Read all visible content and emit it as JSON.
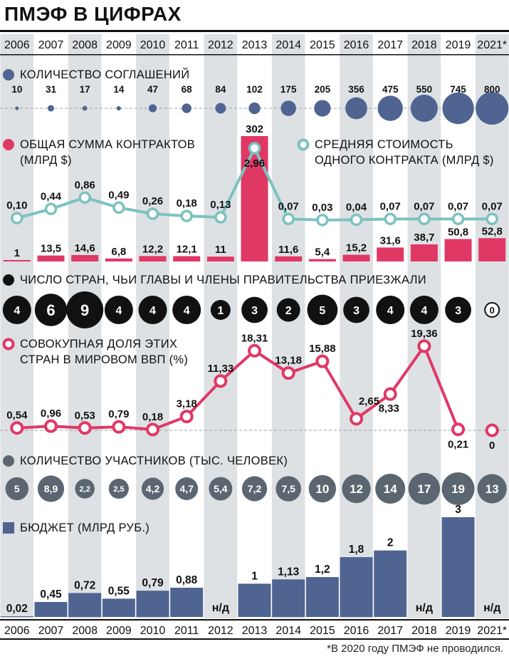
{
  "title": "ПМЭФ В ЦИФРАХ",
  "footnote": "*В 2020 году ПМЭФ не проводился.",
  "years": [
    "2006",
    "2007",
    "2008",
    "2009",
    "2010",
    "2011",
    "2012",
    "2013",
    "2014",
    "2015",
    "2016",
    "2017",
    "2018",
    "2019",
    "2021*"
  ],
  "colors": {
    "blue": "#4f6491",
    "pink": "#e03865",
    "teal": "#7cc2bf",
    "dark": "#111111",
    "gray": "#5b6670",
    "band": "#dde1e4",
    "dashed": "#9aa0a8"
  },
  "chart_data": [
    {
      "type": "scatter",
      "title": "КОЛИЧЕСТВО СОГЛАШЕНИЙ",
      "values": [
        10,
        31,
        17,
        14,
        47,
        68,
        84,
        102,
        175,
        205,
        356,
        475,
        550,
        745,
        800
      ],
      "labels": [
        "10",
        "31",
        "17",
        "14",
        "47",
        "68",
        "84",
        "102",
        "175",
        "205",
        "356",
        "475",
        "550",
        "745",
        "800"
      ]
    },
    {
      "type": "bar",
      "title": "ОБЩАЯ СУММА КОНТРАКТОВ (МЛРД $)",
      "values": [
        1,
        13.5,
        14.6,
        6.8,
        12.2,
        12.1,
        11,
        302,
        11.6,
        5.4,
        15.2,
        31.6,
        38.7,
        50.8,
        52.8
      ],
      "labels": [
        "1",
        "13,5",
        "14,6",
        "6,8",
        "12,2",
        "12,1",
        "11",
        "302",
        "11,6",
        "5,4",
        "15,2",
        "31,6",
        "38,7",
        "50,8",
        "52,8"
      ]
    },
    {
      "type": "line",
      "title": "СРЕДНЯЯ СТОИМОСТЬ ОДНОГО КОНТРАКТА (МЛРД $)",
      "title_lines": [
        "СРЕДНЯЯ СТОИМОСТЬ",
        "ОДНОГО КОНТРАКТА (МЛРД $)"
      ],
      "values": [
        0.1,
        0.44,
        0.86,
        0.49,
        0.26,
        0.18,
        0.13,
        2.96,
        0.07,
        0.03,
        0.04,
        0.07,
        0.07,
        0.07,
        0.07
      ],
      "labels": [
        "0,10",
        "0,44",
        "0,86",
        "0,49",
        "0,26",
        "0,18",
        "0,13",
        "2,96",
        "0,07",
        "0,03",
        "0,04",
        "0,07",
        "0,07",
        "0,07",
        "0,07"
      ]
    },
    {
      "type": "scatter",
      "title": "ЧИСЛО СТРАН, ЧЬИ ГЛАВЫ И ЧЛЕНЫ ПРАВИТЕЛЬСТВА ПРИЕЗЖАЛИ",
      "values": [
        4,
        6,
        9,
        4,
        4,
        4,
        1,
        3,
        2,
        5,
        3,
        4,
        4,
        3,
        0
      ],
      "labels": [
        "4",
        "6",
        "9",
        "4",
        "4",
        "4",
        "1",
        "3",
        "2",
        "5",
        "3",
        "4",
        "4",
        "3",
        "0"
      ]
    },
    {
      "type": "line",
      "title": "СОВОКУПНАЯ ДОЛЯ ЭТИХ СТРАН В МИРОВОМ ВВП (%)",
      "title_lines": [
        "СОВОКУПНАЯ ДОЛЯ ЭТИХ",
        "СТРАН В МИРОВОМ ВВП (%)"
      ],
      "values": [
        0.54,
        0.96,
        0.53,
        0.79,
        0.18,
        3.18,
        11.33,
        18.31,
        13.18,
        15.88,
        2.65,
        8.33,
        19.36,
        0.21,
        0
      ],
      "labels": [
        "0,54",
        "0,96",
        "0,53",
        "0,79",
        "0,18",
        "3,18",
        "11,33",
        "18,31",
        "13,18",
        "15,88",
        "2,65",
        "8,33",
        "19,36",
        "0,21",
        "0"
      ]
    },
    {
      "type": "scatter",
      "title": "КОЛИЧЕСТВО УЧАСТНИКОВ (ТЫС. ЧЕЛОВЕК)",
      "values": [
        5,
        8.9,
        2.2,
        2.5,
        4.2,
        4.7,
        5.4,
        7.2,
        7.5,
        10,
        12,
        14,
        17,
        19,
        13
      ],
      "labels": [
        "5",
        "8,9",
        "2,2",
        "2,5",
        "4,2",
        "4,7",
        "5,4",
        "7,2",
        "7,5",
        "10",
        "12",
        "14",
        "17",
        "19",
        "13"
      ]
    },
    {
      "type": "bar",
      "title": "БЮДЖЕТ (МЛРД РУБ.)",
      "values": [
        0.02,
        0.45,
        0.72,
        0.55,
        0.79,
        0.88,
        null,
        1,
        1.13,
        1.2,
        1.8,
        2,
        null,
        3,
        null
      ],
      "labels": [
        "0,02",
        "0,45",
        "0,72",
        "0,55",
        "0,79",
        "0,88",
        "н/д",
        "1",
        "1,13",
        "1,2",
        "1,8",
        "2",
        "н/д",
        "3",
        "н/д"
      ]
    }
  ]
}
